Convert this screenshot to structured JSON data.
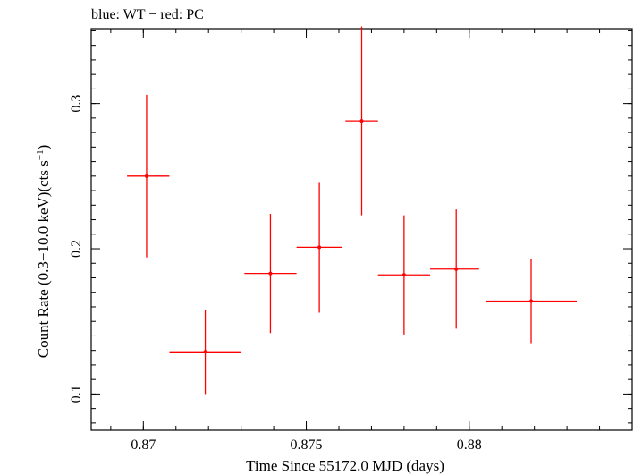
{
  "chart_data": {
    "type": "scatter",
    "title": "blue: WT − red: PC",
    "xlabel": "Time Since 55172.0 MJD (days)",
    "ylabel": "Count Rate (0.3−10.0 keV)(cts s",
    "ylabel_sup": "−1",
    "ylabel_end": ")",
    "xlim": [
      0.8684,
      0.885
    ],
    "ylim": [
      0.075,
      0.3515
    ],
    "x_ticks": [
      0.87,
      0.875,
      0.88
    ],
    "x_tick_labels": [
      "0.87",
      "0.875",
      "0.88"
    ],
    "y_ticks": [
      0.1,
      0.2,
      0.3
    ],
    "y_tick_labels": [
      "0.1",
      "0.2",
      "0.3"
    ],
    "colors": {
      "pc": "#ff0000",
      "axis": "#000000"
    },
    "series": [
      {
        "name": "PC",
        "color": "#ff0000",
        "points": [
          {
            "x": 0.8701,
            "xerr_lo": 0.0006,
            "xerr_hi": 0.0007,
            "y": 0.25,
            "yerr_lo": 0.056,
            "yerr_hi": 0.056
          },
          {
            "x": 0.8719,
            "xerr_lo": 0.0011,
            "xerr_hi": 0.0011,
            "y": 0.129,
            "yerr_lo": 0.029,
            "yerr_hi": 0.029
          },
          {
            "x": 0.8739,
            "xerr_lo": 0.0008,
            "xerr_hi": 0.0008,
            "y": 0.183,
            "yerr_lo": 0.041,
            "yerr_hi": 0.041
          },
          {
            "x": 0.8754,
            "xerr_lo": 0.0007,
            "xerr_hi": 0.0007,
            "y": 0.201,
            "yerr_lo": 0.045,
            "yerr_hi": 0.045
          },
          {
            "x": 0.8767,
            "xerr_lo": 0.0005,
            "xerr_hi": 0.0005,
            "y": 0.288,
            "yerr_lo": 0.065,
            "yerr_hi": 0.065
          },
          {
            "x": 0.878,
            "xerr_lo": 0.0008,
            "xerr_hi": 0.0008,
            "y": 0.182,
            "yerr_lo": 0.041,
            "yerr_hi": 0.041
          },
          {
            "x": 0.8796,
            "xerr_lo": 0.0008,
            "xerr_hi": 0.0007,
            "y": 0.186,
            "yerr_lo": 0.041,
            "yerr_hi": 0.041
          },
          {
            "x": 0.8819,
            "xerr_lo": 0.0014,
            "xerr_hi": 0.0014,
            "y": 0.164,
            "yerr_lo": 0.029,
            "yerr_hi": 0.029
          }
        ]
      }
    ]
  }
}
